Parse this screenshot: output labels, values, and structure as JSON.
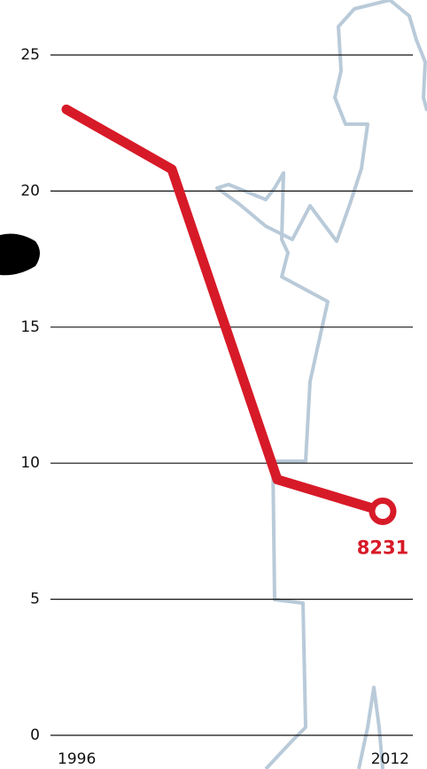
{
  "chart_data": {
    "type": "line",
    "categories": [
      "1996",
      null,
      null,
      "2012"
    ],
    "series": [
      {
        "color": "#d71a28",
        "values": [
          23.0,
          20.8,
          9.4,
          8.231
        ],
        "value_labels": [
          null,
          null,
          null,
          "8231"
        ]
      }
    ],
    "ylim": [
      0,
      25
    ],
    "yticks": [
      0,
      5,
      10,
      15,
      20,
      25
    ],
    "grid": true
  }
}
